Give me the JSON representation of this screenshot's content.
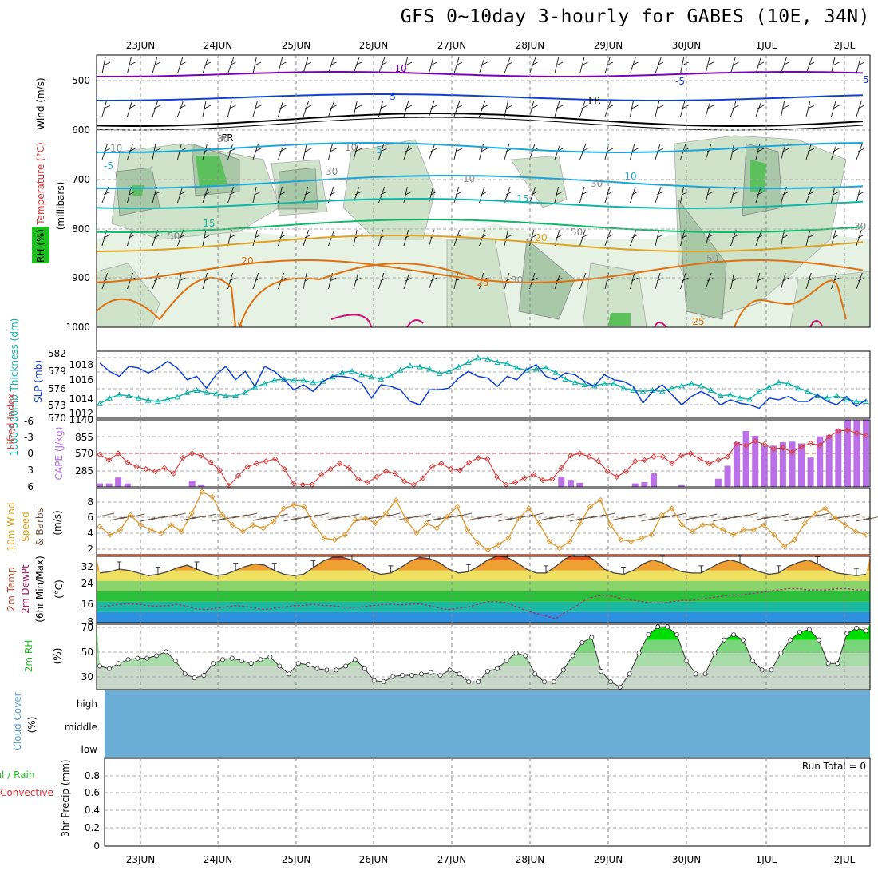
{
  "title": "GFS 0~10day 3-hourly for GABES (10E, 34N)",
  "dates": [
    "23JUN",
    "24JUN",
    "25JUN",
    "26JUN",
    "27JUN",
    "28JUN",
    "29JUN",
    "30JUN",
    "1JUL",
    "2JUL"
  ],
  "colors": {
    "purple": "#7a00b8",
    "blue": "#1040d0",
    "cyan": "#1aa6d8",
    "teal": "#10b4a8",
    "green": "#10b86a",
    "orange": "#e0a020",
    "dorange": "#e07010",
    "magenta": "#d0107a",
    "rh_light": "#e6f2e4",
    "rh_mid": "#a8c8a8",
    "rh_dark": "#3cb44a",
    "cape": "#bb6fe8",
    "li": "#d84040",
    "wind": "#e0a040",
    "cloud": "#6aaed6",
    "rhgreen": "#00dd00"
  },
  "panels": {
    "upper": {
      "ylabel_wind": "Wind (m/s)",
      "ylabel_temp": "Temperature (°C)",
      "ylabel_rh": "RH (%)",
      "ylabel_mb": "(millibars)",
      "yticks": [
        "500",
        "600",
        "700",
        "800",
        "900",
        "1000"
      ],
      "isotherm_labels": [
        "-10",
        "-5",
        "5",
        "10",
        "15",
        "20",
        "25",
        "FR",
        "FR",
        "5",
        "-5",
        "10",
        "15",
        "20",
        "25",
        "25"
      ],
      "rh_labels": [
        "10",
        "30",
        "50",
        "10",
        "30",
        "10",
        "30",
        "50",
        "30",
        "50",
        "30"
      ]
    },
    "slp": {
      "ylabel_left": "1000-500mb Thickness (dm)",
      "ylabel_right": "SLP (mb)",
      "thickness_ticks": [
        "582",
        "579",
        "576",
        "573",
        "570"
      ],
      "slp_ticks": [
        "1018",
        "1016",
        "1014",
        "1012"
      ]
    },
    "cape": {
      "ylabel_left": "Lifted Index",
      "ylabel_right": "CAPE (J/kg)",
      "li_ticks": [
        "-6",
        "-3",
        "0",
        "3",
        "6"
      ],
      "cape_ticks": [
        "1140",
        "855",
        "570",
        "285"
      ]
    },
    "wind": {
      "ylabel_left": "10m Wind",
      "ylabel_mid": "Speed",
      "ylabel_right": "& Barbs",
      "unit": "(m/s)",
      "ticks": [
        "8",
        "6",
        "4",
        "2"
      ]
    },
    "temp": {
      "ylabel_1": "2m Temp",
      "ylabel_2": "2m DewPt",
      "ylabel_3": "(6hr Min/Max)",
      "unit": "(°C)",
      "ticks": [
        "32",
        "24",
        "16",
        "8"
      ]
    },
    "rh2m": {
      "ylabel": "2m RH",
      "unit": "(%)",
      "ticks": [
        "70",
        "50",
        "30"
      ]
    },
    "cloud": {
      "ylabel": "Cloud Cover",
      "unit": "(%)",
      "levels": [
        "high",
        "middle",
        "low"
      ]
    },
    "precip": {
      "ylabel_1": "tal / Rain",
      "ylabel_2": "Convective",
      "ylabel_3": "3hr Precip (mm)",
      "ticks": [
        "0.8",
        "0.6",
        "0.4",
        "0.2",
        "0"
      ],
      "run_total": "Run Total = 0"
    }
  },
  "chart_data": [
    {
      "type": "line",
      "name_hint": "SLP and thickness",
      "series": [
        {
          "name": "SLP (mb)",
          "values": [
            1018.6,
            1017.6,
            1017.0,
            1018.2,
            1018.0,
            1017.4,
            1018.0,
            1018.8,
            1018.0,
            1016.6,
            1017.0,
            1015.6,
            1017.2,
            1018.2,
            1016.6,
            1017.6,
            1015.8,
            1018.2,
            1017.6,
            1016.6,
            1015.4,
            1016.0,
            1015.2,
            1016.4,
            1017.0,
            1017.0,
            1016.8,
            1016.2,
            1014.4,
            1016.0,
            1015.8,
            1015.4,
            1014.0,
            1013.6,
            1015.4,
            1015.4,
            1015.6,
            1016.8,
            1017.6,
            1017.0,
            1016.8,
            1015.8,
            1017.0,
            1016.6,
            1017.8,
            1018.4,
            1017.0,
            1016.6,
            1017.4,
            1017.2,
            1016.4,
            1015.8,
            1017.2,
            1016.6,
            1016.4,
            1015.8,
            1013.8,
            1015.2,
            1016.0,
            1014.8,
            1013.6,
            1014.6,
            1015.2,
            1014.6,
            1013.6,
            1014.2,
            1013.8,
            1013.6,
            1013.2,
            1014.4,
            1014.2,
            1014.6,
            1014.0,
            1014.0,
            1014.8,
            1014.0,
            1013.6,
            1014.6,
            1013.4,
            1014.2
          ]
        },
        {
          "name": "Thickness (dm)",
          "values": [
            572.6,
            573.6,
            574.2,
            574.0,
            573.6,
            573.2,
            573.0,
            573.4,
            573.8,
            574.6,
            575.0,
            574.6,
            574.4,
            574.0,
            574.0,
            574.6,
            575.6,
            576.2,
            576.8,
            577.0,
            576.8,
            576.8,
            576.4,
            576.6,
            577.4,
            578.2,
            578.4,
            577.8,
            577.4,
            577.0,
            577.6,
            578.6,
            579.4,
            579.2,
            578.8,
            578.0,
            578.4,
            579.2,
            580.0,
            580.8,
            580.6,
            580.0,
            579.8,
            579.0,
            578.6,
            578.8,
            579.0,
            578.2,
            577.0,
            576.4,
            576.0,
            575.8,
            576.2,
            576.2,
            575.4,
            575.0,
            574.8,
            575.0,
            574.8,
            575.4,
            575.8,
            576.2,
            575.8,
            575.0,
            574.0,
            574.2,
            573.6,
            573.4,
            574.8,
            575.6,
            576.4,
            576.2,
            575.4,
            574.8,
            574.0,
            573.6,
            574.0,
            573.4,
            573.0,
            573.0
          ]
        }
      ],
      "ylim_thickness": [
        570,
        582
      ],
      "ylim_slp": [
        1012,
        1020
      ]
    },
    {
      "type": "bar",
      "name_hint": "CAPE and Lifted Index",
      "series": [
        {
          "name": "CAPE (J/kg)",
          "values": [
            60,
            60,
            160,
            60,
            0,
            0,
            0,
            0,
            0,
            0,
            110,
            30,
            0,
            0,
            0,
            0,
            0,
            0,
            0,
            0,
            0,
            0,
            0,
            0,
            0,
            0,
            0,
            0,
            0,
            0,
            0,
            0,
            0,
            0,
            0,
            0,
            0,
            0,
            0,
            0,
            0,
            0,
            0,
            0,
            0,
            0,
            0,
            0,
            0,
            0,
            170,
            120,
            70,
            0,
            0,
            0,
            0,
            0,
            60,
            80,
            230,
            0,
            0,
            30,
            0,
            0,
            0,
            140,
            360,
            760,
            950,
            870,
            700,
            700,
            760,
            770,
            740,
            500,
            860,
            880,
            980,
            1140,
            1130,
            1140
          ]
        },
        {
          "name": "Lifted Index",
          "values": [
            0.2,
            1.2,
            0.0,
            1.6,
            2.4,
            2.8,
            3.2,
            2.6,
            3.6,
            0.8,
            0.0,
            0.4,
            1.6,
            3.0,
            5.8,
            4.0,
            2.4,
            1.8,
            1.4,
            1.0,
            2.8,
            5.4,
            5.6,
            5.6,
            3.8,
            2.8,
            1.8,
            2.6,
            4.6,
            5.2,
            4.2,
            3.2,
            3.6,
            5.0,
            5.6,
            4.4,
            2.4,
            1.8,
            2.8,
            3.0,
            1.6,
            0.8,
            1.0,
            4.2,
            5.6,
            5.2,
            4.4,
            3.8,
            4.8,
            4.6,
            2.6,
            0.4,
            0.0,
            0.6,
            1.4,
            3.2,
            4.2,
            3.2,
            1.4,
            1.2,
            0.6,
            0.6,
            1.8,
            0.4,
            0.0,
            1.0,
            1.8,
            1.2,
            0.6,
            -1.8,
            -1.4,
            -2.2,
            -1.6,
            -0.8,
            -1.0,
            -0.2,
            -1.2,
            -1.8,
            -1.4,
            -3.0,
            -4.0,
            -4.2,
            -3.6,
            -3.2
          ]
        }
      ],
      "ylim_li": [
        -6,
        6
      ],
      "ylim_cape": [
        0,
        1140
      ]
    },
    {
      "type": "line",
      "name_hint": "10m wind speed",
      "series": [
        {
          "name": "Speed (m/s)",
          "values": [
            4.4,
            3.4,
            4.0,
            5.8,
            4.6,
            4.0,
            3.6,
            4.6,
            3.8,
            6.0,
            8.6,
            8.0,
            5.8,
            4.6,
            3.8,
            4.6,
            4.2,
            5.0,
            6.6,
            7.0,
            6.8,
            4.6,
            3.0,
            2.8,
            3.4,
            5.2,
            5.4,
            4.8,
            6.0,
            7.6,
            5.2,
            3.6,
            4.8,
            4.2,
            5.6,
            6.8,
            4.0,
            2.4,
            1.6,
            2.2,
            3.0,
            5.4,
            6.6,
            4.8,
            2.6,
            1.8,
            2.6,
            4.8,
            6.8,
            7.6,
            4.6,
            2.8,
            2.6,
            3.0,
            3.4,
            5.8,
            6.6,
            4.6,
            3.8,
            4.6,
            4.6,
            4.0,
            3.4,
            4.0,
            4.0,
            4.6,
            3.4,
            2.0,
            2.8,
            4.8,
            6.0,
            6.6,
            5.4,
            4.6,
            3.8,
            3.4
          ]
        }
      ],
      "ylim": [
        1,
        9
      ]
    },
    {
      "type": "area",
      "name_hint": "2m temperature and dewpoint",
      "series": [
        {
          "name": "2m Temp (°C)",
          "values": [
            27,
            27.5,
            28.5,
            28,
            27,
            26,
            26.5,
            27.5,
            29,
            30,
            28.5,
            27,
            26,
            26.5,
            28,
            29.5,
            30.5,
            30,
            28,
            26.5,
            26,
            26.5,
            29,
            31.5,
            33,
            33,
            32,
            30.5,
            27.5,
            26.5,
            27,
            29,
            31.5,
            33,
            32.5,
            31,
            28.5,
            27,
            27.5,
            29.5,
            32,
            33.5,
            33,
            31,
            28.5,
            27,
            27,
            29.5,
            32.5,
            34,
            34,
            32,
            28.5,
            27,
            26.5,
            28,
            30.5,
            32,
            31,
            29,
            27.5,
            27,
            27,
            29,
            31,
            32,
            31,
            29,
            27.5,
            26.5,
            27,
            29.5,
            31,
            32,
            30.5,
            28.5,
            27,
            26.5,
            26,
            26.5
          ]
        },
        {
          "name": "2m DewPt (°C)",
          "values": [
            14,
            14.5,
            15,
            15.2,
            15,
            14.5,
            14.3,
            14.5,
            15,
            14.2,
            13.2,
            13,
            13.5,
            14,
            14.5,
            14.2,
            13.5,
            13,
            13.5,
            14,
            14.5,
            14.6,
            15,
            14.6,
            14.5,
            14,
            13.8,
            14,
            14.5,
            14.8,
            15,
            14.8,
            15,
            15.2,
            14.5,
            13.5,
            13,
            13.5,
            14,
            15,
            16,
            16,
            15.5,
            14,
            12.5,
            11.5,
            10.5,
            9.5,
            12,
            14,
            16.5,
            18,
            18.5,
            18,
            17,
            16.5,
            16,
            15.5,
            15.5,
            16,
            16.5,
            16.5,
            17,
            17.5,
            18,
            18.5,
            18.5,
            19,
            19.5,
            20,
            20.5,
            21,
            21,
            20.5,
            20.5,
            20.5,
            21,
            21,
            20.5,
            20.5
          ]
        }
      ],
      "ylim": [
        8,
        34
      ]
    },
    {
      "type": "area",
      "name_hint": "2m RH",
      "series": [
        {
          "name": "2m RH (%)",
          "values": [
            40,
            38,
            42,
            45,
            46,
            46,
            48,
            51,
            44,
            34,
            31,
            33,
            42,
            45,
            46,
            44,
            42,
            45,
            47,
            40,
            34,
            42,
            41,
            38,
            37,
            37,
            40,
            45,
            38,
            29,
            28,
            32,
            33,
            33,
            34,
            35,
            33,
            37,
            34,
            28,
            28,
            36,
            38,
            44,
            50,
            48,
            34,
            28,
            28,
            37,
            48,
            58,
            62,
            36,
            28,
            24,
            34,
            50,
            64,
            70,
            70,
            64,
            44,
            34,
            34,
            50,
            60,
            64,
            60,
            44,
            37,
            37,
            50,
            60,
            66,
            68,
            60,
            42,
            42,
            65,
            69,
            67
          ]
        }
      ],
      "ylim": [
        22,
        72
      ]
    },
    {
      "type": "bar",
      "name_hint": "3hr Precip",
      "series": [
        {
          "name": "3hr Precip (mm)",
          "values": []
        }
      ],
      "ylim": [
        0,
        1
      ]
    }
  ]
}
